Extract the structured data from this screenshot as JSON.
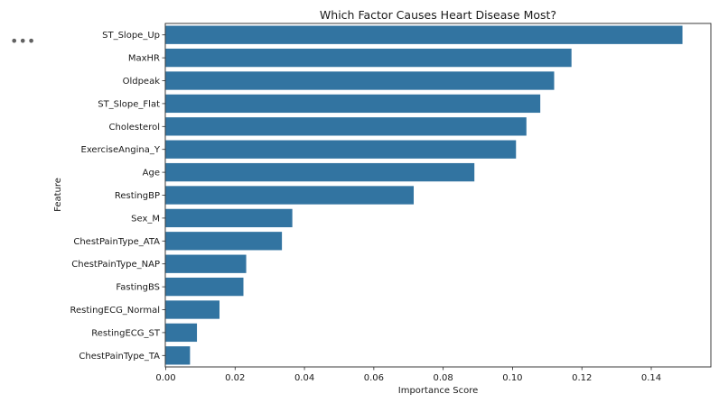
{
  "cell_menu": {
    "icon": "more-horizontal-icon",
    "label": "•••"
  },
  "chart_data": {
    "type": "bar",
    "orientation": "horizontal",
    "title": "Which Factor Causes Heart Disease Most?",
    "xlabel": "Importance Score",
    "ylabel": "Feature",
    "xlim": [
      0,
      0.155
    ],
    "xticks": [
      0.0,
      0.02,
      0.04,
      0.06,
      0.08,
      0.1,
      0.12,
      0.14
    ],
    "xtick_labels": [
      "0.00",
      "0.02",
      "0.04",
      "0.06",
      "0.08",
      "0.10",
      "0.12",
      "0.14"
    ],
    "bar_color": "#3274a1",
    "grid": false,
    "categories": [
      "ST_Slope_Up",
      "MaxHR",
      "Oldpeak",
      "ST_Slope_Flat",
      "Cholesterol",
      "ExerciseAngina_Y",
      "Age",
      "RestingBP",
      "Sex_M",
      "ChestPainType_ATA",
      "ChestPainType_NAP",
      "FastingBS",
      "RestingECG_Normal",
      "RestingECG_ST",
      "ChestPainType_TA"
    ],
    "values": [
      0.149,
      0.117,
      0.112,
      0.108,
      0.104,
      0.101,
      0.089,
      0.0715,
      0.0365,
      0.0335,
      0.0232,
      0.0224,
      0.0155,
      0.009,
      0.007
    ]
  }
}
